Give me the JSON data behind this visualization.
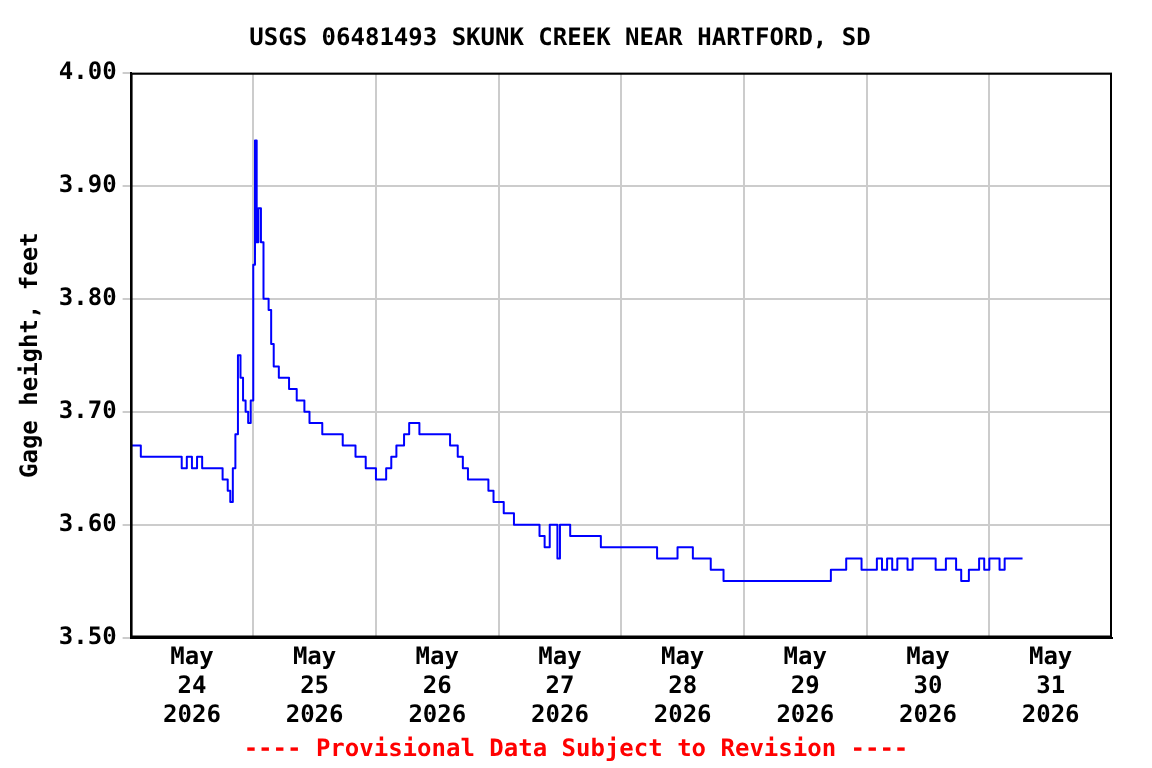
{
  "chart_data": {
    "type": "step",
    "title": "USGS 06481493 SKUNK CREEK NEAR HARTFORD, SD",
    "ylabel": "Gage height, feet",
    "annotations": [
      "---- Provisional Data Subject to Revision ----"
    ],
    "x": [
      "2026-05-24T00:00",
      "2026-05-24T02:00",
      "2026-05-24T10:00",
      "2026-05-24T11:00",
      "2026-05-24T12:00",
      "2026-05-24T13:00",
      "2026-05-24T14:00",
      "2026-05-24T18:00",
      "2026-05-24T19:00",
      "2026-05-24T19:30",
      "2026-05-24T20:00",
      "2026-05-24T20:30",
      "2026-05-24T21:00",
      "2026-05-24T21:30",
      "2026-05-24T22:00",
      "2026-05-24T22:30",
      "2026-05-24T23:00",
      "2026-05-24T23:30",
      "2026-05-25T00:00",
      "2026-05-25T00:20",
      "2026-05-25T00:40",
      "2026-05-25T01:00",
      "2026-05-25T01:30",
      "2026-05-25T02:00",
      "2026-05-25T03:00",
      "2026-05-25T03:30",
      "2026-05-25T04:00",
      "2026-05-25T05:00",
      "2026-05-25T07:00",
      "2026-05-25T08:30",
      "2026-05-25T10:00",
      "2026-05-25T11:00",
      "2026-05-25T13:30",
      "2026-05-25T17:30",
      "2026-05-25T20:00",
      "2026-05-25T22:00",
      "2026-05-26T00:00",
      "2026-05-26T02:00",
      "2026-05-26T03:00",
      "2026-05-26T04:00",
      "2026-05-26T05:30",
      "2026-05-26T06:30",
      "2026-05-26T08:30",
      "2026-05-26T14:30",
      "2026-05-26T16:00",
      "2026-05-26T17:00",
      "2026-05-26T18:00",
      "2026-05-26T22:00",
      "2026-05-26T23:00",
      "2026-05-27T01:00",
      "2026-05-27T03:00",
      "2026-05-27T08:00",
      "2026-05-27T09:00",
      "2026-05-27T10:00",
      "2026-05-27T11:30",
      "2026-05-27T12:00",
      "2026-05-27T14:00",
      "2026-05-27T20:00",
      "2026-05-28T07:00",
      "2026-05-28T11:00",
      "2026-05-28T14:00",
      "2026-05-28T17:30",
      "2026-05-28T20:00",
      "2026-05-29T17:00",
      "2026-05-29T20:00",
      "2026-05-29T23:00",
      "2026-05-30T02:00",
      "2026-05-30T03:00",
      "2026-05-30T04:00",
      "2026-05-30T05:00",
      "2026-05-30T06:00",
      "2026-05-30T08:00",
      "2026-05-30T09:00",
      "2026-05-30T13:30",
      "2026-05-30T15:30",
      "2026-05-30T17:30",
      "2026-05-30T18:30",
      "2026-05-30T20:00",
      "2026-05-30T22:00",
      "2026-05-30T23:00",
      "2026-05-31T00:00",
      "2026-05-31T02:00",
      "2026-05-31T03:00",
      "2026-05-31T06:30"
    ],
    "series": [
      {
        "color": "#0000ff",
        "values": [
          3.67,
          3.66,
          3.65,
          3.66,
          3.65,
          3.66,
          3.65,
          3.64,
          3.63,
          3.62,
          3.65,
          3.68,
          3.75,
          3.73,
          3.71,
          3.7,
          3.69,
          3.71,
          3.83,
          3.94,
          3.85,
          3.88,
          3.85,
          3.8,
          3.79,
          3.76,
          3.74,
          3.73,
          3.72,
          3.71,
          3.7,
          3.69,
          3.68,
          3.67,
          3.66,
          3.65,
          3.64,
          3.65,
          3.66,
          3.67,
          3.68,
          3.69,
          3.68,
          3.67,
          3.66,
          3.65,
          3.64,
          3.63,
          3.62,
          3.61,
          3.6,
          3.59,
          3.58,
          3.6,
          3.57,
          3.6,
          3.59,
          3.58,
          3.57,
          3.58,
          3.57,
          3.56,
          3.55,
          3.56,
          3.57,
          3.56,
          3.57,
          3.56,
          3.57,
          3.56,
          3.57,
          3.56,
          3.57,
          3.56,
          3.57,
          3.56,
          3.55,
          3.56,
          3.57,
          3.56,
          3.57,
          3.56,
          3.57,
          3.57
        ]
      }
    ],
    "xlim": [
      "2026-05-24T00:00",
      "2026-06-01T00:00"
    ],
    "xticks": [
      {
        "value": "2026-05-24T12:00",
        "label": "May\n24\n2026"
      },
      {
        "value": "2026-05-25T00:00",
        "label": null
      },
      {
        "value": "2026-05-25T12:00",
        "label": "May\n25\n2026"
      },
      {
        "value": "2026-05-26T00:00",
        "label": null
      },
      {
        "value": "2026-05-26T12:00",
        "label": "May\n26\n2026"
      },
      {
        "value": "2026-05-27T00:00",
        "label": null
      },
      {
        "value": "2026-05-27T12:00",
        "label": "May\n27\n2026"
      },
      {
        "value": "2026-05-28T00:00",
        "label": null
      },
      {
        "value": "2026-05-28T12:00",
        "label": "May\n28\n2026"
      },
      {
        "value": "2026-05-29T00:00",
        "label": null
      },
      {
        "value": "2026-05-29T12:00",
        "label": "May\n29\n2026"
      },
      {
        "value": "2026-05-30T00:00",
        "label": null
      },
      {
        "value": "2026-05-30T12:00",
        "label": "May\n30\n2026"
      },
      {
        "value": "2026-05-31T00:00",
        "label": null
      },
      {
        "value": "2026-05-31T12:00",
        "label": "May\n31\n2026"
      }
    ],
    "ylim": [
      3.5,
      4.0
    ],
    "yticks": [
      {
        "value": 3.5,
        "label": "3.50"
      },
      {
        "value": 3.6,
        "label": "3.60"
      },
      {
        "value": 3.7,
        "label": "3.70"
      },
      {
        "value": 3.8,
        "label": "3.80"
      },
      {
        "value": 3.9,
        "label": "3.90"
      },
      {
        "value": 4.0,
        "label": "4.00"
      }
    ],
    "grid": true,
    "legend": false
  }
}
